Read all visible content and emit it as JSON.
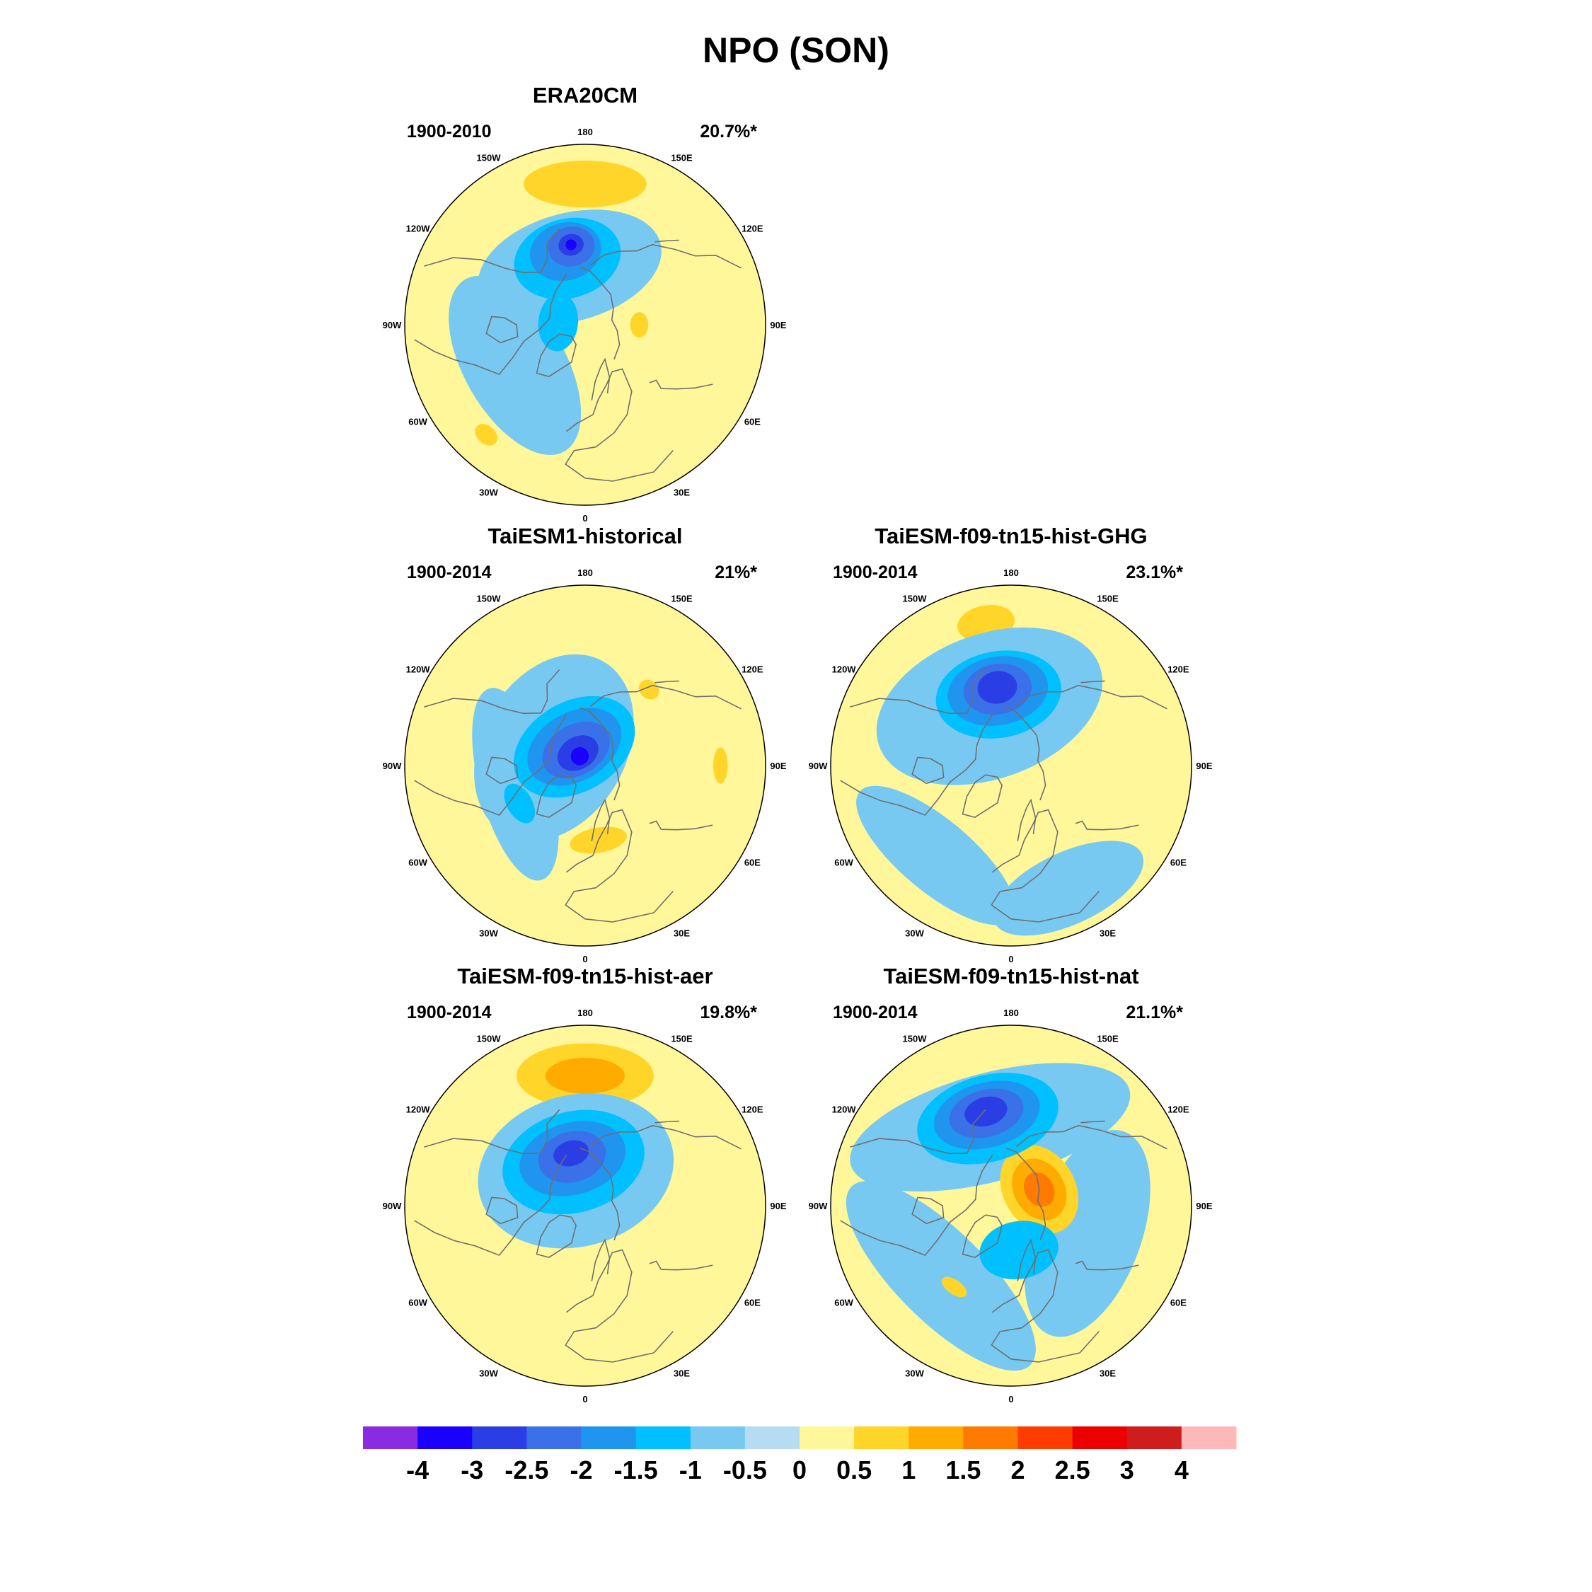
{
  "figure": {
    "title": "NPO (SON)",
    "colorbar": {
      "colors": [
        "#8a2be2",
        "#1a00ff",
        "#2b3ee6",
        "#3a70e8",
        "#1f95f0",
        "#00c0ff",
        "#77c9f2",
        "#b6dcf1",
        "#fff79a",
        "#ffd52a",
        "#ffab00",
        "#ff7a00",
        "#ff3c00",
        "#ec0000",
        "#cf1d1d",
        "#ffb8b8"
      ],
      "labels": [
        "-4",
        "-3",
        "-2.5",
        "-2",
        "-1.5",
        "-1",
        "-0.5",
        "0",
        "0.5",
        "1",
        "1.5",
        "2",
        "2.5",
        "3",
        "4"
      ]
    },
    "lon_labels": [
      "180",
      "150W",
      "150E",
      "120W",
      "120E",
      "90W",
      "90E",
      "60W",
      "60E",
      "30W",
      "30E",
      "0"
    ],
    "panels": [
      {
        "name": "ERA20CM",
        "period": "1900-2010",
        "variance": "20.7%*",
        "features": [
          {
            "lvl": 1,
            "lon": 180,
            "colat": 0.78,
            "a": 0.34,
            "b": 0.13
          },
          {
            "lvl": -1,
            "lon": -165,
            "colat": 0.33,
            "a": 0.52,
            "b": 0.3
          },
          {
            "lvl": -2,
            "lon": -165,
            "colat": 0.38,
            "a": 0.3,
            "b": 0.22
          },
          {
            "lvl": -3,
            "lon": -165,
            "colat": 0.42,
            "a": 0.2,
            "b": 0.16
          },
          {
            "lvl": -4,
            "lon": -170,
            "colat": 0.44,
            "a": 0.13,
            "b": 0.11
          },
          {
            "lvl": -5,
            "lon": -170,
            "colat": 0.45,
            "a": 0.07,
            "b": 0.06
          },
          {
            "lvl": -6,
            "lon": -170,
            "colat": 0.45,
            "a": 0.03,
            "b": 0.03
          },
          {
            "lvl": -1,
            "lon": -60,
            "colat": 0.45,
            "a": 0.55,
            "b": 0.28
          },
          {
            "lvl": -2,
            "lon": -95,
            "colat": 0.15,
            "a": 0.16,
            "b": 0.11
          },
          {
            "lvl": 1,
            "lon": 90,
            "colat": 0.3,
            "a": 0.07,
            "b": 0.05
          },
          {
            "lvl": 1,
            "lon": -42,
            "colat": 0.82,
            "a": 0.07,
            "b": 0.05
          }
        ]
      },
      {
        "name": "TaiESM1-historical",
        "period": "1900-2014",
        "variance": "21%*",
        "features": [
          {
            "lvl": -1,
            "lon": -120,
            "colat": 0.2,
            "a": 0.55,
            "b": 0.4
          },
          {
            "lvl": -2,
            "lon": -150,
            "colat": 0.12,
            "a": 0.36,
            "b": 0.25
          },
          {
            "lvl": -3,
            "lon": -150,
            "colat": 0.12,
            "a": 0.28,
            "b": 0.19
          },
          {
            "lvl": -4,
            "lon": -150,
            "colat": 0.1,
            "a": 0.2,
            "b": 0.14
          },
          {
            "lvl": -5,
            "lon": -150,
            "colat": 0.08,
            "a": 0.12,
            "b": 0.09
          },
          {
            "lvl": -6,
            "lon": -150,
            "colat": 0.06,
            "a": 0.05,
            "b": 0.05
          },
          {
            "lvl": -1,
            "lon": -75,
            "colat": 0.4,
            "a": 0.55,
            "b": 0.2
          },
          {
            "lvl": -2,
            "lon": -60,
            "colat": 0.42,
            "a": 0.12,
            "b": 0.07
          },
          {
            "lvl": 1,
            "lon": 10,
            "colat": 0.42,
            "a": 0.16,
            "b": 0.07
          },
          {
            "lvl": 1,
            "lon": 140,
            "colat": 0.55,
            "a": 0.06,
            "b": 0.05
          },
          {
            "lvl": 1,
            "lon": 90,
            "colat": 0.75,
            "a": 0.1,
            "b": 0.04
          }
        ]
      },
      {
        "name": "TaiESM-f09-tn15-hist-GHG",
        "period": "1900-2014",
        "variance": "23.1%*",
        "features": [
          {
            "lvl": 1,
            "lon": -170,
            "colat": 0.8,
            "a": 0.16,
            "b": 0.1
          },
          {
            "lvl": -1,
            "lon": -160,
            "colat": 0.35,
            "a": 0.65,
            "b": 0.4
          },
          {
            "lvl": -1,
            "lon": -40,
            "colat": 0.65,
            "a": 0.55,
            "b": 0.2
          },
          {
            "lvl": -1,
            "lon": 25,
            "colat": 0.75,
            "a": 0.45,
            "b": 0.2
          },
          {
            "lvl": -2,
            "lon": -170,
            "colat": 0.4,
            "a": 0.35,
            "b": 0.24
          },
          {
            "lvl": -3,
            "lon": -170,
            "colat": 0.42,
            "a": 0.28,
            "b": 0.19
          },
          {
            "lvl": -4,
            "lon": -170,
            "colat": 0.43,
            "a": 0.19,
            "b": 0.14
          },
          {
            "lvl": -5,
            "lon": -170,
            "colat": 0.44,
            "a": 0.11,
            "b": 0.09
          }
        ]
      },
      {
        "name": "TaiESM-f09-tn15-hist-aer",
        "period": "1900-2014",
        "variance": "19.8%*",
        "features": [
          {
            "lvl": 1,
            "lon": 180,
            "colat": 0.72,
            "a": 0.38,
            "b": 0.18
          },
          {
            "lvl": 2,
            "lon": 180,
            "colat": 0.72,
            "a": 0.22,
            "b": 0.1
          },
          {
            "lvl": -1,
            "lon": -165,
            "colat": 0.2,
            "a": 0.55,
            "b": 0.42
          },
          {
            "lvl": -2,
            "lon": -165,
            "colat": 0.25,
            "a": 0.4,
            "b": 0.28
          },
          {
            "lvl": -3,
            "lon": -165,
            "colat": 0.27,
            "a": 0.3,
            "b": 0.2
          },
          {
            "lvl": -4,
            "lon": -165,
            "colat": 0.28,
            "a": 0.19,
            "b": 0.14
          },
          {
            "lvl": -5,
            "lon": -165,
            "colat": 0.3,
            "a": 0.1,
            "b": 0.07
          }
        ]
      },
      {
        "name": "TaiESM-f09-tn15-hist-nat",
        "period": "1900-2014",
        "variance": "21.1%*",
        "features": [
          {
            "lvl": -1,
            "lon": -165,
            "colat": 0.45,
            "a": 0.8,
            "b": 0.3
          },
          {
            "lvl": -1,
            "lon": -45,
            "colat": 0.55,
            "a": 0.7,
            "b": 0.25
          },
          {
            "lvl": -1,
            "lon": 70,
            "colat": 0.45,
            "a": 0.6,
            "b": 0.3
          },
          {
            "lvl": -2,
            "lon": -165,
            "colat": 0.5,
            "a": 0.4,
            "b": 0.24
          },
          {
            "lvl": -3,
            "lon": -165,
            "colat": 0.52,
            "a": 0.3,
            "b": 0.18
          },
          {
            "lvl": -4,
            "lon": -165,
            "colat": 0.53,
            "a": 0.21,
            "b": 0.13
          },
          {
            "lvl": -5,
            "lon": -165,
            "colat": 0.54,
            "a": 0.12,
            "b": 0.08
          },
          {
            "lvl": 1,
            "lon": 120,
            "colat": 0.18,
            "a": 0.26,
            "b": 0.2
          },
          {
            "lvl": 2,
            "lon": 120,
            "colat": 0.18,
            "a": 0.18,
            "b": 0.14
          },
          {
            "lvl": 3,
            "lon": 120,
            "colat": 0.18,
            "a": 0.1,
            "b": 0.08
          },
          {
            "lvl": -2,
            "lon": 10,
            "colat": 0.25,
            "a": 0.22,
            "b": 0.16
          },
          {
            "lvl": 1,
            "lon": -35,
            "colat": 0.55,
            "a": 0.08,
            "b": 0.04
          }
        ]
      }
    ]
  }
}
